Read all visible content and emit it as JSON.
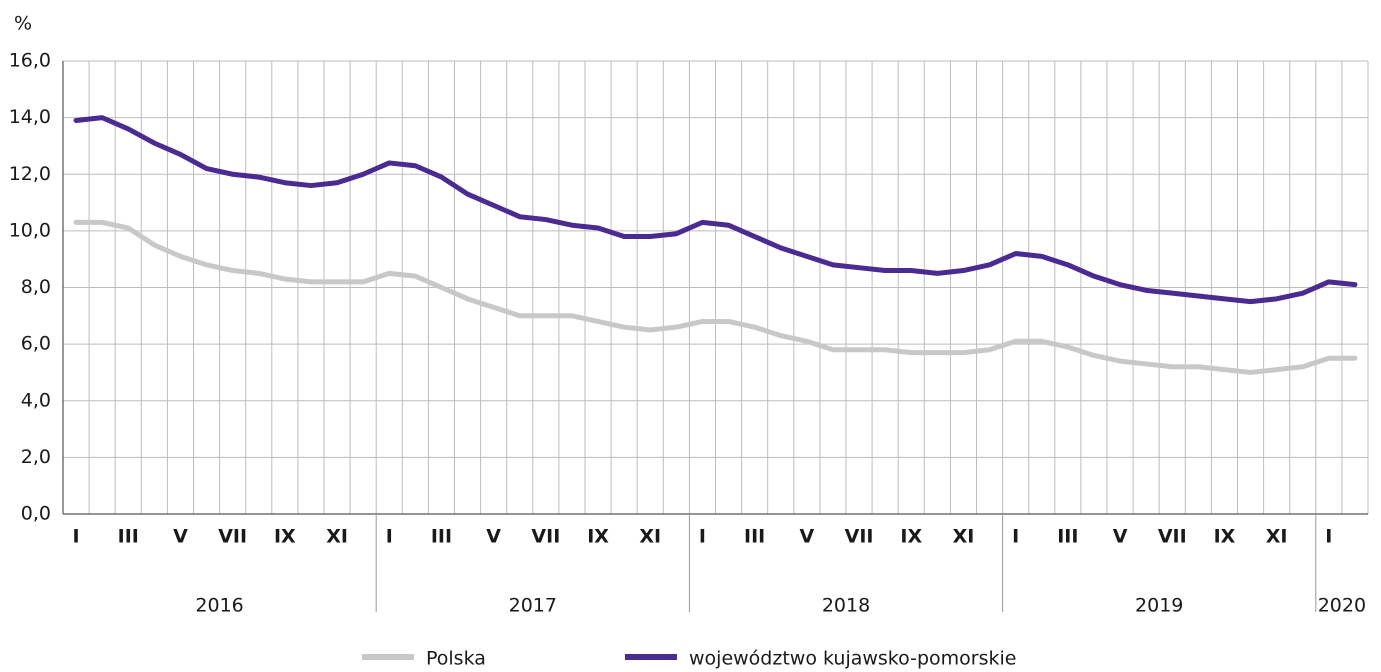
{
  "chart_data": {
    "type": "line",
    "y_label": "%",
    "categories": [
      "I",
      null,
      "III",
      null,
      "V",
      null,
      "VII",
      null,
      "IX",
      null,
      "XI",
      null,
      "I",
      null,
      "III",
      null,
      "V",
      null,
      "VII",
      null,
      "IX",
      null,
      "XI",
      null,
      "I",
      null,
      "III",
      null,
      "V",
      null,
      "VII",
      null,
      "IX",
      null,
      "XI",
      null,
      "I",
      null,
      "III",
      null,
      "V",
      null,
      "VII",
      null,
      "IX",
      null,
      "XI",
      null,
      "I",
      null
    ],
    "years": [
      "2016",
      "2017",
      "2018",
      "2019",
      "2020"
    ],
    "series": [
      {
        "name": "Polska",
        "color": "#c8c8c8",
        "values": [
          10.3,
          10.3,
          10.1,
          9.5,
          9.1,
          8.8,
          8.6,
          8.5,
          8.3,
          8.2,
          8.2,
          8.2,
          8.5,
          8.4,
          8.0,
          7.6,
          7.3,
          7.0,
          7.0,
          7.0,
          6.8,
          6.6,
          6.5,
          6.6,
          6.8,
          6.8,
          6.6,
          6.3,
          6.1,
          5.8,
          5.8,
          5.8,
          5.7,
          5.7,
          5.7,
          5.8,
          6.1,
          6.1,
          5.9,
          5.6,
          5.4,
          5.3,
          5.2,
          5.2,
          5.1,
          5.0,
          5.1,
          5.2,
          5.5,
          5.5
        ]
      },
      {
        "name": "województwo kujawsko-pomorskie",
        "color": "#4b2a91",
        "values": [
          13.9,
          14.0,
          13.6,
          13.1,
          12.7,
          12.2,
          12.0,
          11.9,
          11.7,
          11.6,
          11.7,
          12.0,
          12.4,
          12.3,
          11.9,
          11.3,
          10.9,
          10.5,
          10.4,
          10.2,
          10.1,
          9.8,
          9.8,
          9.9,
          10.3,
          10.2,
          9.8,
          9.4,
          9.1,
          8.8,
          8.7,
          8.6,
          8.6,
          8.5,
          8.6,
          8.8,
          9.2,
          9.1,
          8.8,
          8.4,
          8.1,
          7.9,
          7.8,
          7.7,
          7.6,
          7.5,
          7.6,
          7.8,
          8.2,
          8.1
        ]
      }
    ],
    "ylim": [
      0,
      16
    ],
    "yticks": [
      {
        "value": 0,
        "label": "0,0"
      },
      {
        "value": 2,
        "label": "2,0"
      },
      {
        "value": 4,
        "label": "4,0"
      },
      {
        "value": 6,
        "label": "6,0"
      },
      {
        "value": 8,
        "label": "8,0"
      },
      {
        "value": 10,
        "label": "10,0"
      },
      {
        "value": 12,
        "label": "12,0"
      },
      {
        "value": 14,
        "label": "14,0"
      },
      {
        "value": 16,
        "label": "16,0"
      }
    ],
    "grid": true,
    "legend": "bottom"
  }
}
